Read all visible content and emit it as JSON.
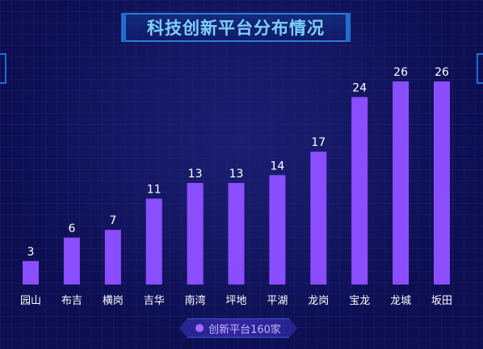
{
  "title": "科技创新平台分布情况",
  "legend_label": "创新平台160家",
  "colors": {
    "background": "#0d0f52",
    "bar": "#8a4dff",
    "title": "#7fd0ff",
    "label": "#ffffff"
  },
  "chart_data": {
    "type": "bar",
    "title": "科技创新平台分布情况",
    "categories": [
      "园山",
      "布吉",
      "横岗",
      "吉华",
      "南湾",
      "坪地",
      "平湖",
      "龙岗",
      "宝龙",
      "龙城",
      "坂田"
    ],
    "values": [
      3,
      6,
      7,
      11,
      13,
      13,
      14,
      17,
      24,
      26,
      26
    ],
    "series": [
      {
        "name": "创新平台160家",
        "values": [
          3,
          6,
          7,
          11,
          13,
          13,
          14,
          17,
          24,
          26,
          26
        ]
      }
    ],
    "xlabel": "",
    "ylabel": "",
    "ylim": [
      0,
      26
    ],
    "grid": false,
    "data_labels": true,
    "legend_position": "bottom-center"
  }
}
